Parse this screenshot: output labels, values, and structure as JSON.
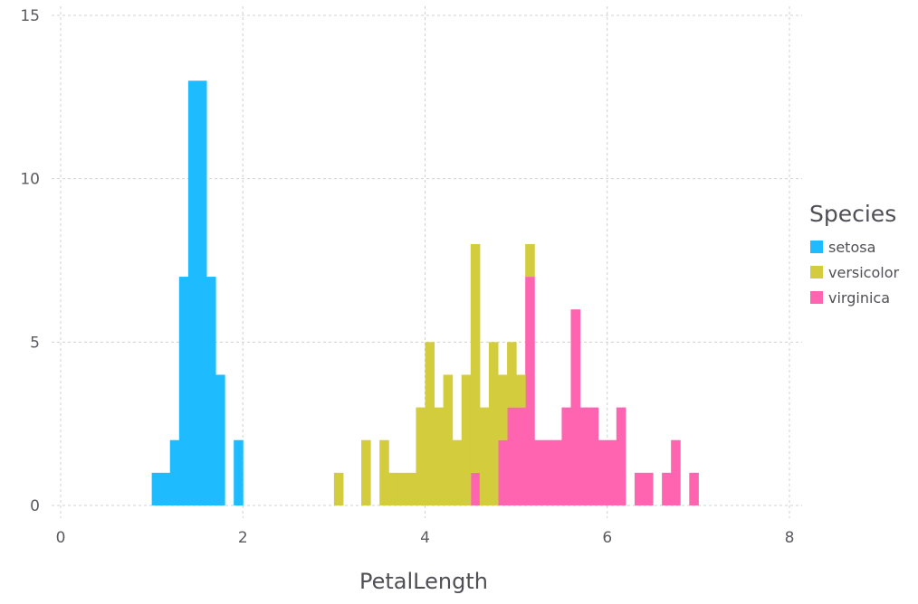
{
  "chart_data": {
    "type": "bar",
    "stacked": true,
    "xlabel": "PetalLength",
    "xlim": [
      0,
      8
    ],
    "ylim": [
      0,
      15
    ],
    "x_ticks": [
      "0",
      "2",
      "4",
      "6",
      "8"
    ],
    "y_ticks": [
      "0",
      "5",
      "10",
      "15"
    ],
    "bin_width": 0.1,
    "grid": true,
    "legend": {
      "title": "Species",
      "placement": "right"
    },
    "series": [
      {
        "name": "setosa",
        "color": "#1ebcff",
        "bins": [
          {
            "x": 1.0,
            "count": 1
          },
          {
            "x": 1.1,
            "count": 1
          },
          {
            "x": 1.2,
            "count": 2
          },
          {
            "x": 1.3,
            "count": 7
          },
          {
            "x": 1.4,
            "count": 13
          },
          {
            "x": 1.5,
            "count": 13
          },
          {
            "x": 1.6,
            "count": 7
          },
          {
            "x": 1.7,
            "count": 4
          },
          {
            "x": 1.9,
            "count": 2
          }
        ]
      },
      {
        "name": "versicolor",
        "color": "#d3cc3c",
        "bins": [
          {
            "x": 3.0,
            "count": 1
          },
          {
            "x": 3.3,
            "count": 2
          },
          {
            "x": 3.5,
            "count": 2
          },
          {
            "x": 3.6,
            "count": 1
          },
          {
            "x": 3.7,
            "count": 1
          },
          {
            "x": 3.8,
            "count": 1
          },
          {
            "x": 3.9,
            "count": 3
          },
          {
            "x": 4.0,
            "count": 5
          },
          {
            "x": 4.1,
            "count": 3
          },
          {
            "x": 4.2,
            "count": 4
          },
          {
            "x": 4.3,
            "count": 2
          },
          {
            "x": 4.4,
            "count": 4
          },
          {
            "x": 4.5,
            "count": 7
          },
          {
            "x": 4.6,
            "count": 3
          },
          {
            "x": 4.7,
            "count": 5
          },
          {
            "x": 4.8,
            "count": 2
          },
          {
            "x": 4.9,
            "count": 2
          },
          {
            "x": 5.0,
            "count": 1
          },
          {
            "x": 5.1,
            "count": 1
          }
        ]
      },
      {
        "name": "virginica",
        "color": "#ff64b0",
        "bins": [
          {
            "x": 4.5,
            "count": 1
          },
          {
            "x": 4.8,
            "count": 2
          },
          {
            "x": 4.9,
            "count": 3
          },
          {
            "x": 5.0,
            "count": 3
          },
          {
            "x": 5.1,
            "count": 7
          },
          {
            "x": 5.2,
            "count": 2
          },
          {
            "x": 5.3,
            "count": 2
          },
          {
            "x": 5.4,
            "count": 2
          },
          {
            "x": 5.5,
            "count": 3
          },
          {
            "x": 5.6,
            "count": 6
          },
          {
            "x": 5.7,
            "count": 3
          },
          {
            "x": 5.8,
            "count": 3
          },
          {
            "x": 5.9,
            "count": 2
          },
          {
            "x": 6.0,
            "count": 2
          },
          {
            "x": 6.1,
            "count": 3
          },
          {
            "x": 6.3,
            "count": 1
          },
          {
            "x": 6.4,
            "count": 1
          },
          {
            "x": 6.6,
            "count": 1
          },
          {
            "x": 6.7,
            "count": 2
          },
          {
            "x": 6.9,
            "count": 1
          }
        ]
      }
    ]
  }
}
